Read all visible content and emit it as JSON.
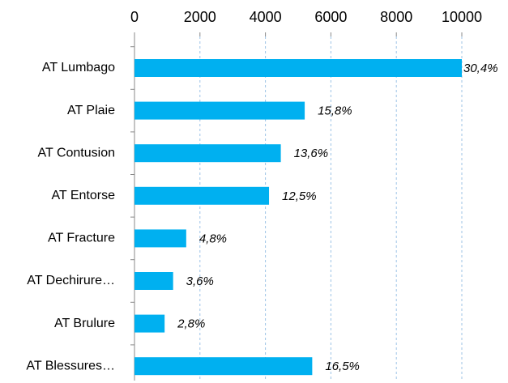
{
  "chart_data": {
    "type": "bar",
    "orientation": "horizontal",
    "categories": [
      "AT Lumbago",
      "AT Plaie",
      "AT Contusion",
      "AT Entorse",
      "AT Fracture",
      "AT Dechirure…",
      "AT Brulure",
      "AT Blessures…"
    ],
    "values": [
      10000,
      5200,
      4470,
      4110,
      1580,
      1180,
      920,
      5430
    ],
    "value_labels": [
      "30,4%",
      "15,8%",
      "13,6%",
      "12,5%",
      "4,8%",
      "3,6%",
      "2,8%",
      "16,5%"
    ],
    "color": "#00b0f0",
    "xlim": [
      0,
      10000
    ],
    "xticks": [
      0,
      2000,
      4000,
      6000,
      8000,
      10000
    ],
    "grid": true
  }
}
